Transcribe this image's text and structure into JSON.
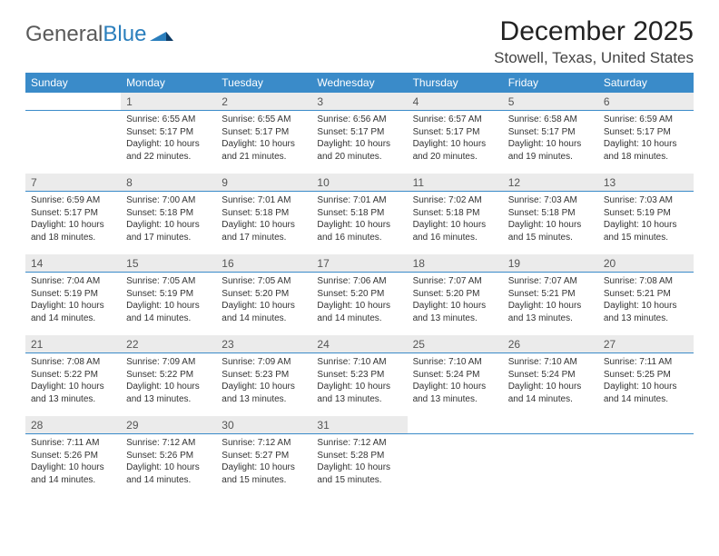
{
  "brand": {
    "part1": "General",
    "part2": "Blue"
  },
  "title": "December 2025",
  "location": "Stowell, Texas, United States",
  "colors": {
    "header_bg": "#3a8bc9",
    "header_text": "#ffffff",
    "daynum_bg": "#ebebeb",
    "divider": "#3a8bc9",
    "body_bg": "#ffffff",
    "text": "#333333",
    "logo_gray": "#5a5a5a",
    "logo_blue": "#2b7fbd"
  },
  "dow": [
    "Sunday",
    "Monday",
    "Tuesday",
    "Wednesday",
    "Thursday",
    "Friday",
    "Saturday"
  ],
  "weeks": [
    [
      null,
      {
        "n": "1",
        "sr": "6:55 AM",
        "ss": "5:17 PM",
        "dl": "10 hours and 22 minutes."
      },
      {
        "n": "2",
        "sr": "6:55 AM",
        "ss": "5:17 PM",
        "dl": "10 hours and 21 minutes."
      },
      {
        "n": "3",
        "sr": "6:56 AM",
        "ss": "5:17 PM",
        "dl": "10 hours and 20 minutes."
      },
      {
        "n": "4",
        "sr": "6:57 AM",
        "ss": "5:17 PM",
        "dl": "10 hours and 20 minutes."
      },
      {
        "n": "5",
        "sr": "6:58 AM",
        "ss": "5:17 PM",
        "dl": "10 hours and 19 minutes."
      },
      {
        "n": "6",
        "sr": "6:59 AM",
        "ss": "5:17 PM",
        "dl": "10 hours and 18 minutes."
      }
    ],
    [
      {
        "n": "7",
        "sr": "6:59 AM",
        "ss": "5:17 PM",
        "dl": "10 hours and 18 minutes."
      },
      {
        "n": "8",
        "sr": "7:00 AM",
        "ss": "5:18 PM",
        "dl": "10 hours and 17 minutes."
      },
      {
        "n": "9",
        "sr": "7:01 AM",
        "ss": "5:18 PM",
        "dl": "10 hours and 17 minutes."
      },
      {
        "n": "10",
        "sr": "7:01 AM",
        "ss": "5:18 PM",
        "dl": "10 hours and 16 minutes."
      },
      {
        "n": "11",
        "sr": "7:02 AM",
        "ss": "5:18 PM",
        "dl": "10 hours and 16 minutes."
      },
      {
        "n": "12",
        "sr": "7:03 AM",
        "ss": "5:18 PM",
        "dl": "10 hours and 15 minutes."
      },
      {
        "n": "13",
        "sr": "7:03 AM",
        "ss": "5:19 PM",
        "dl": "10 hours and 15 minutes."
      }
    ],
    [
      {
        "n": "14",
        "sr": "7:04 AM",
        "ss": "5:19 PM",
        "dl": "10 hours and 14 minutes."
      },
      {
        "n": "15",
        "sr": "7:05 AM",
        "ss": "5:19 PM",
        "dl": "10 hours and 14 minutes."
      },
      {
        "n": "16",
        "sr": "7:05 AM",
        "ss": "5:20 PM",
        "dl": "10 hours and 14 minutes."
      },
      {
        "n": "17",
        "sr": "7:06 AM",
        "ss": "5:20 PM",
        "dl": "10 hours and 14 minutes."
      },
      {
        "n": "18",
        "sr": "7:07 AM",
        "ss": "5:20 PM",
        "dl": "10 hours and 13 minutes."
      },
      {
        "n": "19",
        "sr": "7:07 AM",
        "ss": "5:21 PM",
        "dl": "10 hours and 13 minutes."
      },
      {
        "n": "20",
        "sr": "7:08 AM",
        "ss": "5:21 PM",
        "dl": "10 hours and 13 minutes."
      }
    ],
    [
      {
        "n": "21",
        "sr": "7:08 AM",
        "ss": "5:22 PM",
        "dl": "10 hours and 13 minutes."
      },
      {
        "n": "22",
        "sr": "7:09 AM",
        "ss": "5:22 PM",
        "dl": "10 hours and 13 minutes."
      },
      {
        "n": "23",
        "sr": "7:09 AM",
        "ss": "5:23 PM",
        "dl": "10 hours and 13 minutes."
      },
      {
        "n": "24",
        "sr": "7:10 AM",
        "ss": "5:23 PM",
        "dl": "10 hours and 13 minutes."
      },
      {
        "n": "25",
        "sr": "7:10 AM",
        "ss": "5:24 PM",
        "dl": "10 hours and 13 minutes."
      },
      {
        "n": "26",
        "sr": "7:10 AM",
        "ss": "5:24 PM",
        "dl": "10 hours and 14 minutes."
      },
      {
        "n": "27",
        "sr": "7:11 AM",
        "ss": "5:25 PM",
        "dl": "10 hours and 14 minutes."
      }
    ],
    [
      {
        "n": "28",
        "sr": "7:11 AM",
        "ss": "5:26 PM",
        "dl": "10 hours and 14 minutes."
      },
      {
        "n": "29",
        "sr": "7:12 AM",
        "ss": "5:26 PM",
        "dl": "10 hours and 14 minutes."
      },
      {
        "n": "30",
        "sr": "7:12 AM",
        "ss": "5:27 PM",
        "dl": "10 hours and 15 minutes."
      },
      {
        "n": "31",
        "sr": "7:12 AM",
        "ss": "5:28 PM",
        "dl": "10 hours and 15 minutes."
      },
      null,
      null,
      null
    ]
  ],
  "labels": {
    "sunrise": "Sunrise:",
    "sunset": "Sunset:",
    "daylight": "Daylight:"
  }
}
